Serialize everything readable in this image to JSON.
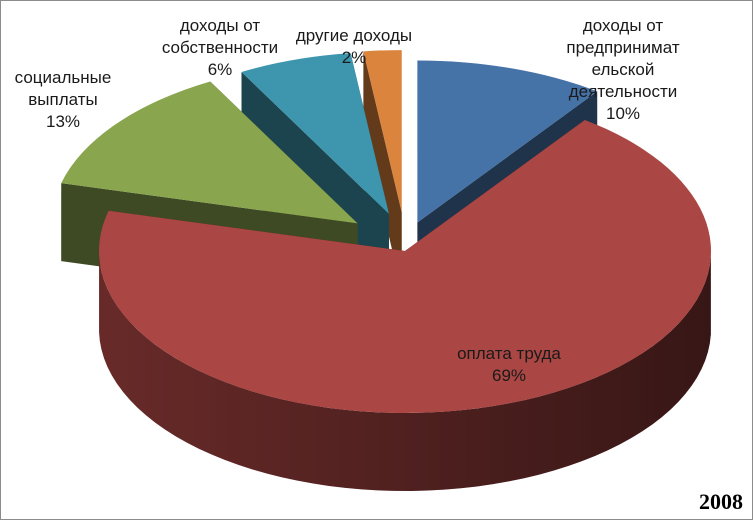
{
  "chart_data": {
    "type": "pie",
    "title": "",
    "year_label": "2008",
    "slices": [
      {
        "label_lines": [
          "доходы от",
          "предпринимат",
          "ельской",
          "деятельности"
        ],
        "value": 10,
        "value_label": "10%",
        "color": "#4572A7"
      },
      {
        "label_lines": [
          "оплата труда"
        ],
        "value": 69,
        "value_label": "69%",
        "color": "#AA4643"
      },
      {
        "label_lines": [
          "социальные",
          "выплаты"
        ],
        "value": 13,
        "value_label": "13%",
        "color": "#89A54E"
      },
      {
        "label_lines": [
          "доходы от",
          "собственности"
        ],
        "value": 6,
        "value_label": "6%",
        "color": "#3D96AE"
      },
      {
        "label_lines": [
          "другие доходы"
        ],
        "value": 2,
        "value_label": "2%",
        "color": "#DB843D"
      }
    ]
  }
}
